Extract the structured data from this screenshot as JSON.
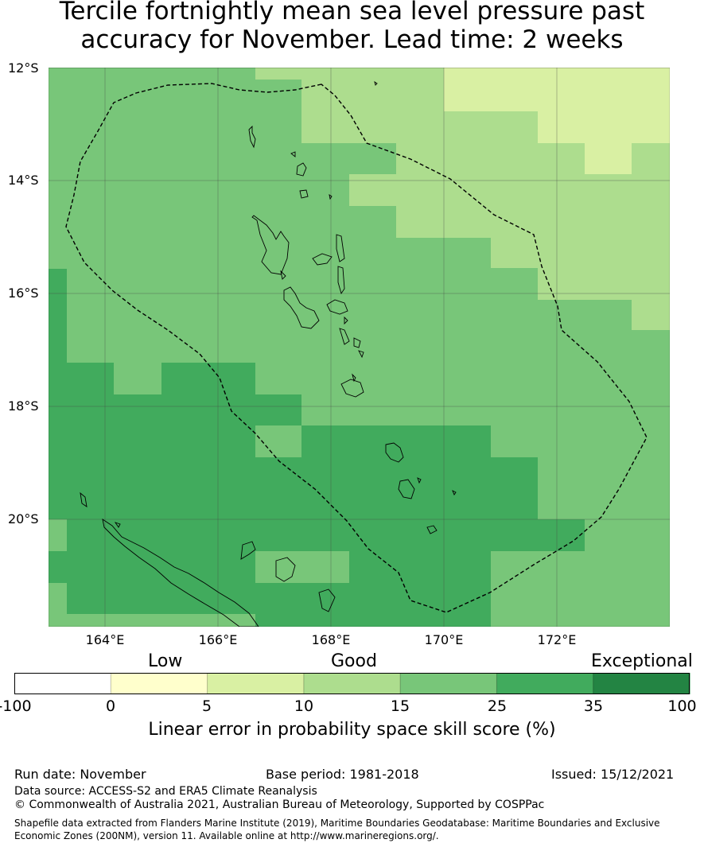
{
  "title": {
    "line1": "Tercile fortnightly mean sea level pressure past",
    "line2": "accuracy for November. Lead time: 2 weeks"
  },
  "map": {
    "lat_labels": [
      "12°S",
      "14°S",
      "16°S",
      "18°S",
      "20°S"
    ],
    "lon_labels": [
      "164°E",
      "166°E",
      "168°E",
      "170°E",
      "172°E"
    ],
    "features": [
      "skill-score-grid",
      "eez-boundary",
      "coastlines",
      "gridlines"
    ]
  },
  "colorbar": {
    "category_labels": {
      "low": "Low",
      "good": "Good",
      "exceptional": "Exceptional"
    },
    "ticks": [
      "-100",
      "0",
      "5",
      "10",
      "15",
      "25",
      "35",
      "100"
    ],
    "bins": [
      {
        "from": -100,
        "to": 0,
        "color": "#ffffff"
      },
      {
        "from": 0,
        "to": 5,
        "color": "#ffffcc"
      },
      {
        "from": 5,
        "to": 10,
        "color": "#d9f0a3"
      },
      {
        "from": 10,
        "to": 15,
        "color": "#addd8e"
      },
      {
        "from": 15,
        "to": 25,
        "color": "#78c679"
      },
      {
        "from": 25,
        "to": 35,
        "color": "#41ab5d"
      },
      {
        "from": 35,
        "to": 100,
        "color": "#238443"
      }
    ],
    "label": "Linear error in probability space skill score (%)"
  },
  "footer": {
    "run_date": "Run date: November",
    "base_period": "Base period: 1981-2018",
    "issued": "Issued: 15/12/2021",
    "data_source": "Data source: ACCESS-S2 and ERA5 Climate Reanalysis",
    "copyright": "© Commonwealth of Australia 2021, Australian Bureau of Meteorology, Supported by COSPPac",
    "shapefile": "Shapefile data extracted from Flanders Marine Institute (2019), Maritime Boundaries Geodatabase: Maritime Boundaries and Exclusive Economic Zones (200NM), version 11. Available online at http://www.marineregions.org/."
  }
}
